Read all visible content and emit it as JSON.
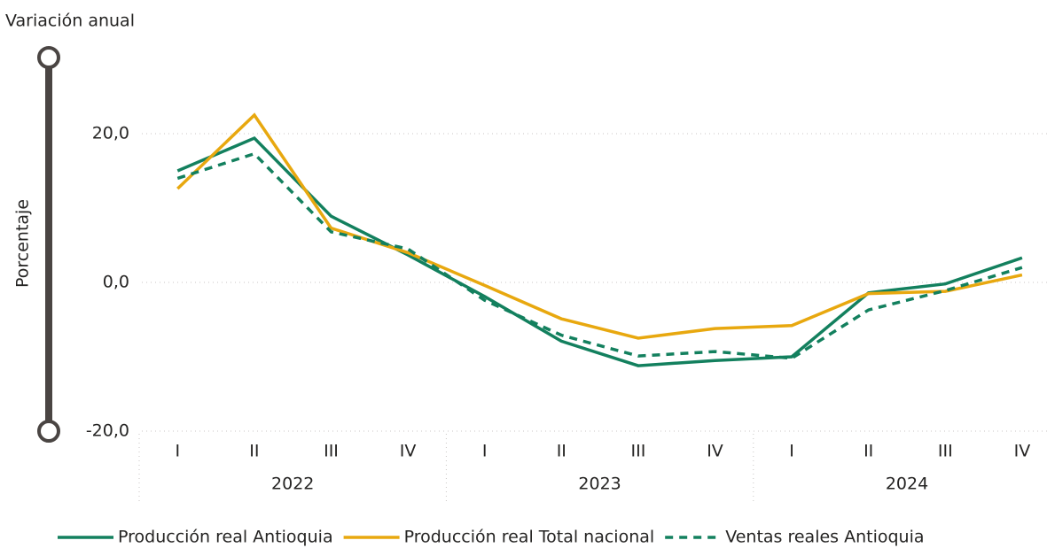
{
  "chart_data": {
    "type": "line",
    "title": "Variación anual",
    "y_label": "Porcentaje",
    "categories": [
      "I",
      "II",
      "III",
      "IV",
      "I",
      "II",
      "III",
      "IV",
      "I",
      "II",
      "III",
      "IV"
    ],
    "groups": [
      "2022",
      "2023",
      "2024"
    ],
    "series": [
      {
        "name": "Producción real Antioquia",
        "color": "#13805e",
        "style": "solid",
        "values": [
          15.0,
          19.4,
          8.9,
          3.7,
          -1.9,
          -7.9,
          -11.2,
          -10.5,
          -10.0,
          -1.4,
          -0.2,
          3.3
        ]
      },
      {
        "name": "Producción real Total nacional",
        "color": "#e8a80f",
        "style": "solid",
        "values": [
          12.6,
          22.5,
          7.3,
          4.0,
          -0.4,
          -4.9,
          -7.5,
          -6.2,
          -5.8,
          -1.5,
          -1.2,
          1.0
        ]
      },
      {
        "name": "Ventas reales Antioquia",
        "color": "#13805e",
        "style": "dashed",
        "values": [
          14.0,
          17.3,
          6.8,
          4.5,
          -2.4,
          -7.1,
          -9.9,
          -9.3,
          -10.2,
          -3.7,
          -1.1,
          2.0
        ]
      }
    ],
    "ylim": [
      -20,
      30
    ],
    "yticks": [
      {
        "value": -20,
        "label": "-20,0"
      },
      {
        "value": 0,
        "label": "0,0"
      },
      {
        "value": 20,
        "label": "20,0"
      }
    ],
    "grid": true,
    "legend": "bottom"
  }
}
